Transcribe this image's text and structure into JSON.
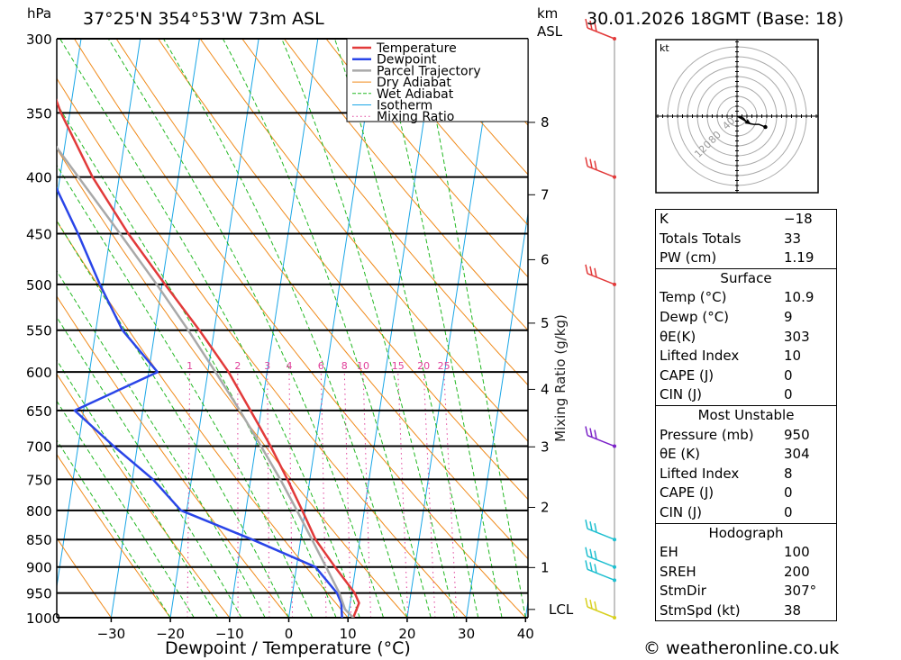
{
  "header": {
    "coords": "37°25'N  354°53'W  73m  ASL",
    "datetime": "30.01.2026  18GMT  (Base: 18)",
    "pressure_unit": "hPa",
    "height_unit_km": "km",
    "height_unit_asl": "ASL",
    "x_axis_title": "Dewpoint / Temperature (°C)",
    "mixing_ratio_title": "Mixing Ratio (g/kg)",
    "credit": "© weatheronline.co.uk"
  },
  "chart_data": {
    "type": "line",
    "title": "Skew-T log-P diagram",
    "xlabel": "Dewpoint / Temperature (°C)",
    "ylabel": "hPa",
    "xlim": [
      -40,
      40
    ],
    "ylim": [
      1000,
      300
    ],
    "x_ticks": [
      -30,
      -20,
      -10,
      0,
      10,
      20,
      30,
      40
    ],
    "pressure_levels": [
      300,
      350,
      400,
      450,
      500,
      550,
      600,
      650,
      700,
      750,
      800,
      850,
      900,
      950,
      1000
    ],
    "height_ticks_km": [
      {
        "label": "8",
        "p": 357
      },
      {
        "label": "7",
        "p": 415
      },
      {
        "label": "6",
        "p": 475
      },
      {
        "label": "5",
        "p": 542
      },
      {
        "label": "4",
        "p": 622
      },
      {
        "label": "3",
        "p": 701
      },
      {
        "label": "2",
        "p": 795
      },
      {
        "label": "1",
        "p": 901
      },
      {
        "label": "LCL",
        "p": 983
      }
    ],
    "mixing_ratio_labels": [
      "1",
      "2",
      "3",
      "4",
      "6",
      "8",
      "10",
      "15",
      "20",
      "25"
    ],
    "mixing_ratio_values": [
      1,
      2,
      3,
      4,
      6,
      8,
      10,
      15,
      20,
      25
    ],
    "legend": [
      "Temperature",
      "Dewpoint",
      "Parcel Trajectory",
      "Dry Adiabat",
      "Wet Adiabat",
      "Isotherm",
      "Mixing Ratio"
    ],
    "colors": {
      "temperature": "#e23a3a",
      "dewpoint": "#2a45e8",
      "parcel": "#a9a9a9",
      "dry_adiabat": "#f08a1a",
      "wet_adiabat": "#22b822",
      "isotherm": "#1aa6e6",
      "mixing_ratio": "#e0409a"
    },
    "series": [
      {
        "name": "Temperature",
        "points": [
          [
            1000,
            10.9
          ],
          [
            970,
            11.5
          ],
          [
            950,
            10.5
          ],
          [
            900,
            6.5
          ],
          [
            850,
            2.5
          ],
          [
            800,
            -0.5
          ],
          [
            750,
            -3.8
          ],
          [
            700,
            -7.5
          ],
          [
            650,
            -11.8
          ],
          [
            600,
            -16.5
          ],
          [
            550,
            -22.5
          ],
          [
            500,
            -29.5
          ],
          [
            450,
            -37
          ],
          [
            400,
            -44.5
          ],
          [
            350,
            -51.5
          ],
          [
            300,
            -58
          ]
        ]
      },
      {
        "name": "Dewpoint",
        "points": [
          [
            1000,
            9
          ],
          [
            970,
            8.5
          ],
          [
            950,
            7.5
          ],
          [
            900,
            3.2
          ],
          [
            850,
            -8.2
          ],
          [
            800,
            -21
          ],
          [
            750,
            -26.5
          ],
          [
            700,
            -34
          ],
          [
            650,
            -41.5
          ],
          [
            600,
            -28.5
          ],
          [
            550,
            -35.5
          ],
          [
            500,
            -40.5
          ],
          [
            450,
            -45.5
          ],
          [
            400,
            -51.5
          ],
          [
            350,
            -55.5
          ],
          [
            300,
            -79.5
          ]
        ]
      },
      {
        "name": "Parcel Trajectory",
        "points": [
          [
            1000,
            10.9
          ],
          [
            983,
            9.3
          ],
          [
            950,
            7.9
          ],
          [
            900,
            5.0
          ],
          [
            850,
            1.9
          ],
          [
            800,
            -1.4
          ],
          [
            750,
            -5.0
          ],
          [
            700,
            -9.1
          ],
          [
            650,
            -13.6
          ],
          [
            600,
            -18.7
          ],
          [
            550,
            -24.4
          ],
          [
            500,
            -30.9
          ],
          [
            450,
            -38.4
          ],
          [
            400,
            -46.9
          ],
          [
            350,
            -56.5
          ],
          [
            300,
            -67
          ]
        ]
      }
    ],
    "wind_barbs": [
      {
        "p": 300,
        "color": "#e23a3a"
      },
      {
        "p": 400,
        "color": "#e23a3a"
      },
      {
        "p": 500,
        "color": "#e23a3a"
      },
      {
        "p": 700,
        "color": "#7b22c8"
      },
      {
        "p": 850,
        "color": "#1fbfd0"
      },
      {
        "p": 900,
        "color": "#1fbfd0"
      },
      {
        "p": 925,
        "color": "#1fbfd0"
      },
      {
        "p": 1000,
        "color": "#d8d020"
      }
    ]
  },
  "hodograph": {
    "unit": "kt",
    "ring_labels": [
      "40",
      "80",
      "120"
    ],
    "trace_kt": [
      [
        0,
        0
      ],
      [
        8,
        -2
      ],
      [
        12,
        -4
      ],
      [
        18,
        -12
      ],
      [
        30,
        -15
      ],
      [
        40,
        -15
      ],
      [
        52,
        -20
      ]
    ],
    "storm_motion_kt": [
      26,
      -15
    ]
  },
  "indices": {
    "general": [
      {
        "label": "K",
        "value": "−18"
      },
      {
        "label": "Totals Totals",
        "value": "33"
      },
      {
        "label": "PW (cm)",
        "value": "1.19"
      }
    ],
    "surface": {
      "title": "Surface",
      "rows": [
        {
          "label": "Temp (°C)",
          "value": "10.9"
        },
        {
          "label": "Dewp (°C)",
          "value": "9"
        },
        {
          "label": "θE(K)",
          "value": "303"
        },
        {
          "label": "Lifted Index",
          "value": "10"
        },
        {
          "label": "CAPE (J)",
          "value": "0"
        },
        {
          "label": "CIN (J)",
          "value": "0"
        }
      ]
    },
    "most_unstable": {
      "title": "Most Unstable",
      "rows": [
        {
          "label": "Pressure (mb)",
          "value": "950"
        },
        {
          "label": "θE (K)",
          "value": "304"
        },
        {
          "label": "Lifted Index",
          "value": "8"
        },
        {
          "label": "CAPE (J)",
          "value": "0"
        },
        {
          "label": "CIN (J)",
          "value": "0"
        }
      ]
    },
    "hodograph_stats": {
      "title": "Hodograph",
      "rows": [
        {
          "label": "EH",
          "value": "100"
        },
        {
          "label": "SREH",
          "value": "200"
        },
        {
          "label": "StmDir",
          "value": "307°"
        },
        {
          "label": "StmSpd (kt)",
          "value": "38"
        }
      ]
    }
  }
}
